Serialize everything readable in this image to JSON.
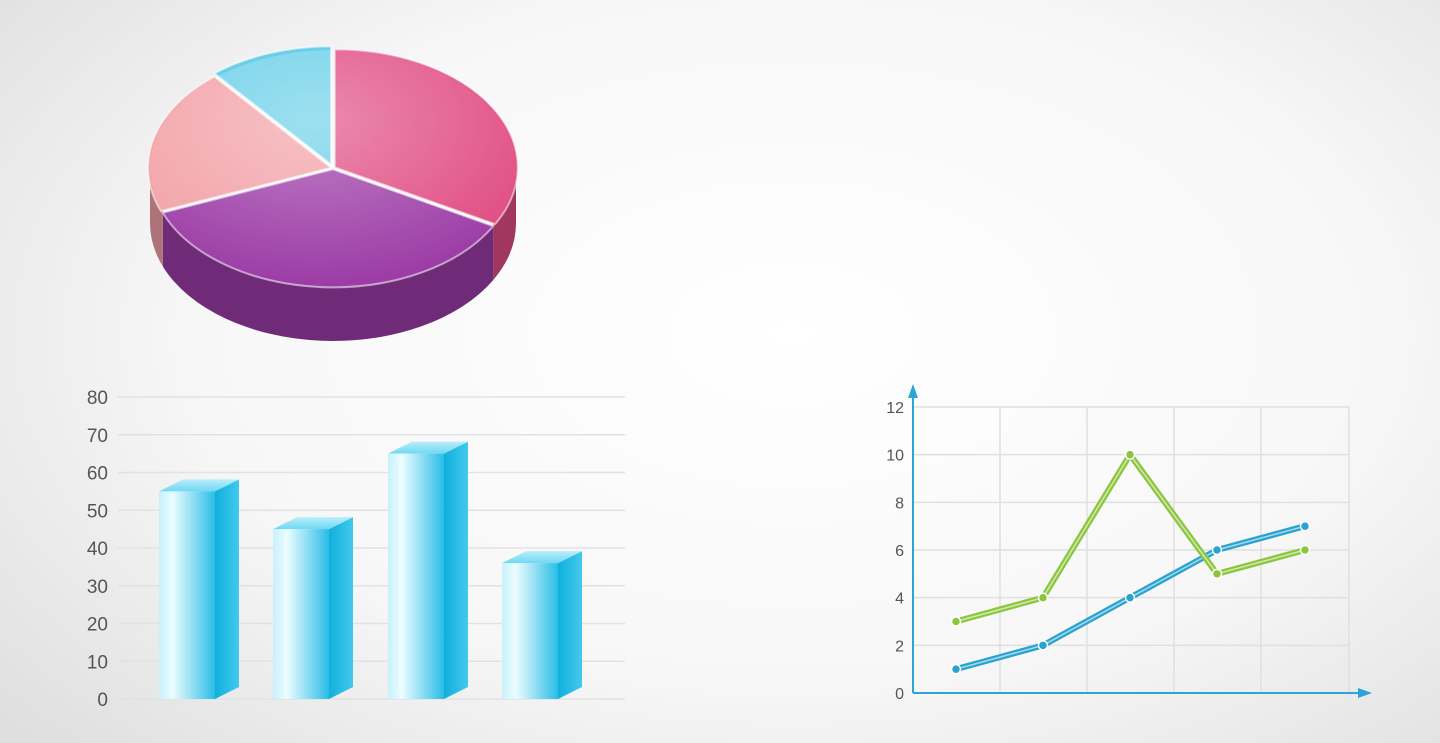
{
  "chart_data": [
    {
      "type": "pie",
      "slices": [
        {
          "value": 33,
          "color": "#e04c82"
        },
        {
          "value": 36,
          "color": "#9c3ca6"
        },
        {
          "value": 20,
          "color": "#f2a0a6"
        },
        {
          "value": 11,
          "color": "#69cfe8"
        }
      ]
    },
    {
      "type": "bar",
      "categories": [
        "",
        "",
        "",
        ""
      ],
      "values": [
        55,
        45,
        65,
        36
      ],
      "ylim": [
        0,
        80
      ],
      "yticks": [
        "0",
        "10",
        "20",
        "30",
        "40",
        "50",
        "60",
        "70",
        "80"
      ],
      "grid": true,
      "color": "#3cc6ea"
    },
    {
      "type": "line",
      "x": [
        1,
        2,
        3,
        4,
        5
      ],
      "series": [
        {
          "values": [
            1,
            2,
            4,
            6,
            7
          ],
          "color": "#2aa3cf"
        },
        {
          "values": [
            3,
            4,
            10,
            5,
            6
          ],
          "color": "#8cc63e"
        }
      ],
      "ylim": [
        0,
        12
      ],
      "yticks": [
        "0",
        "2",
        "4",
        "6",
        "8",
        "10",
        "12"
      ],
      "grid": true,
      "axis_color": "#29a6d6"
    }
  ]
}
